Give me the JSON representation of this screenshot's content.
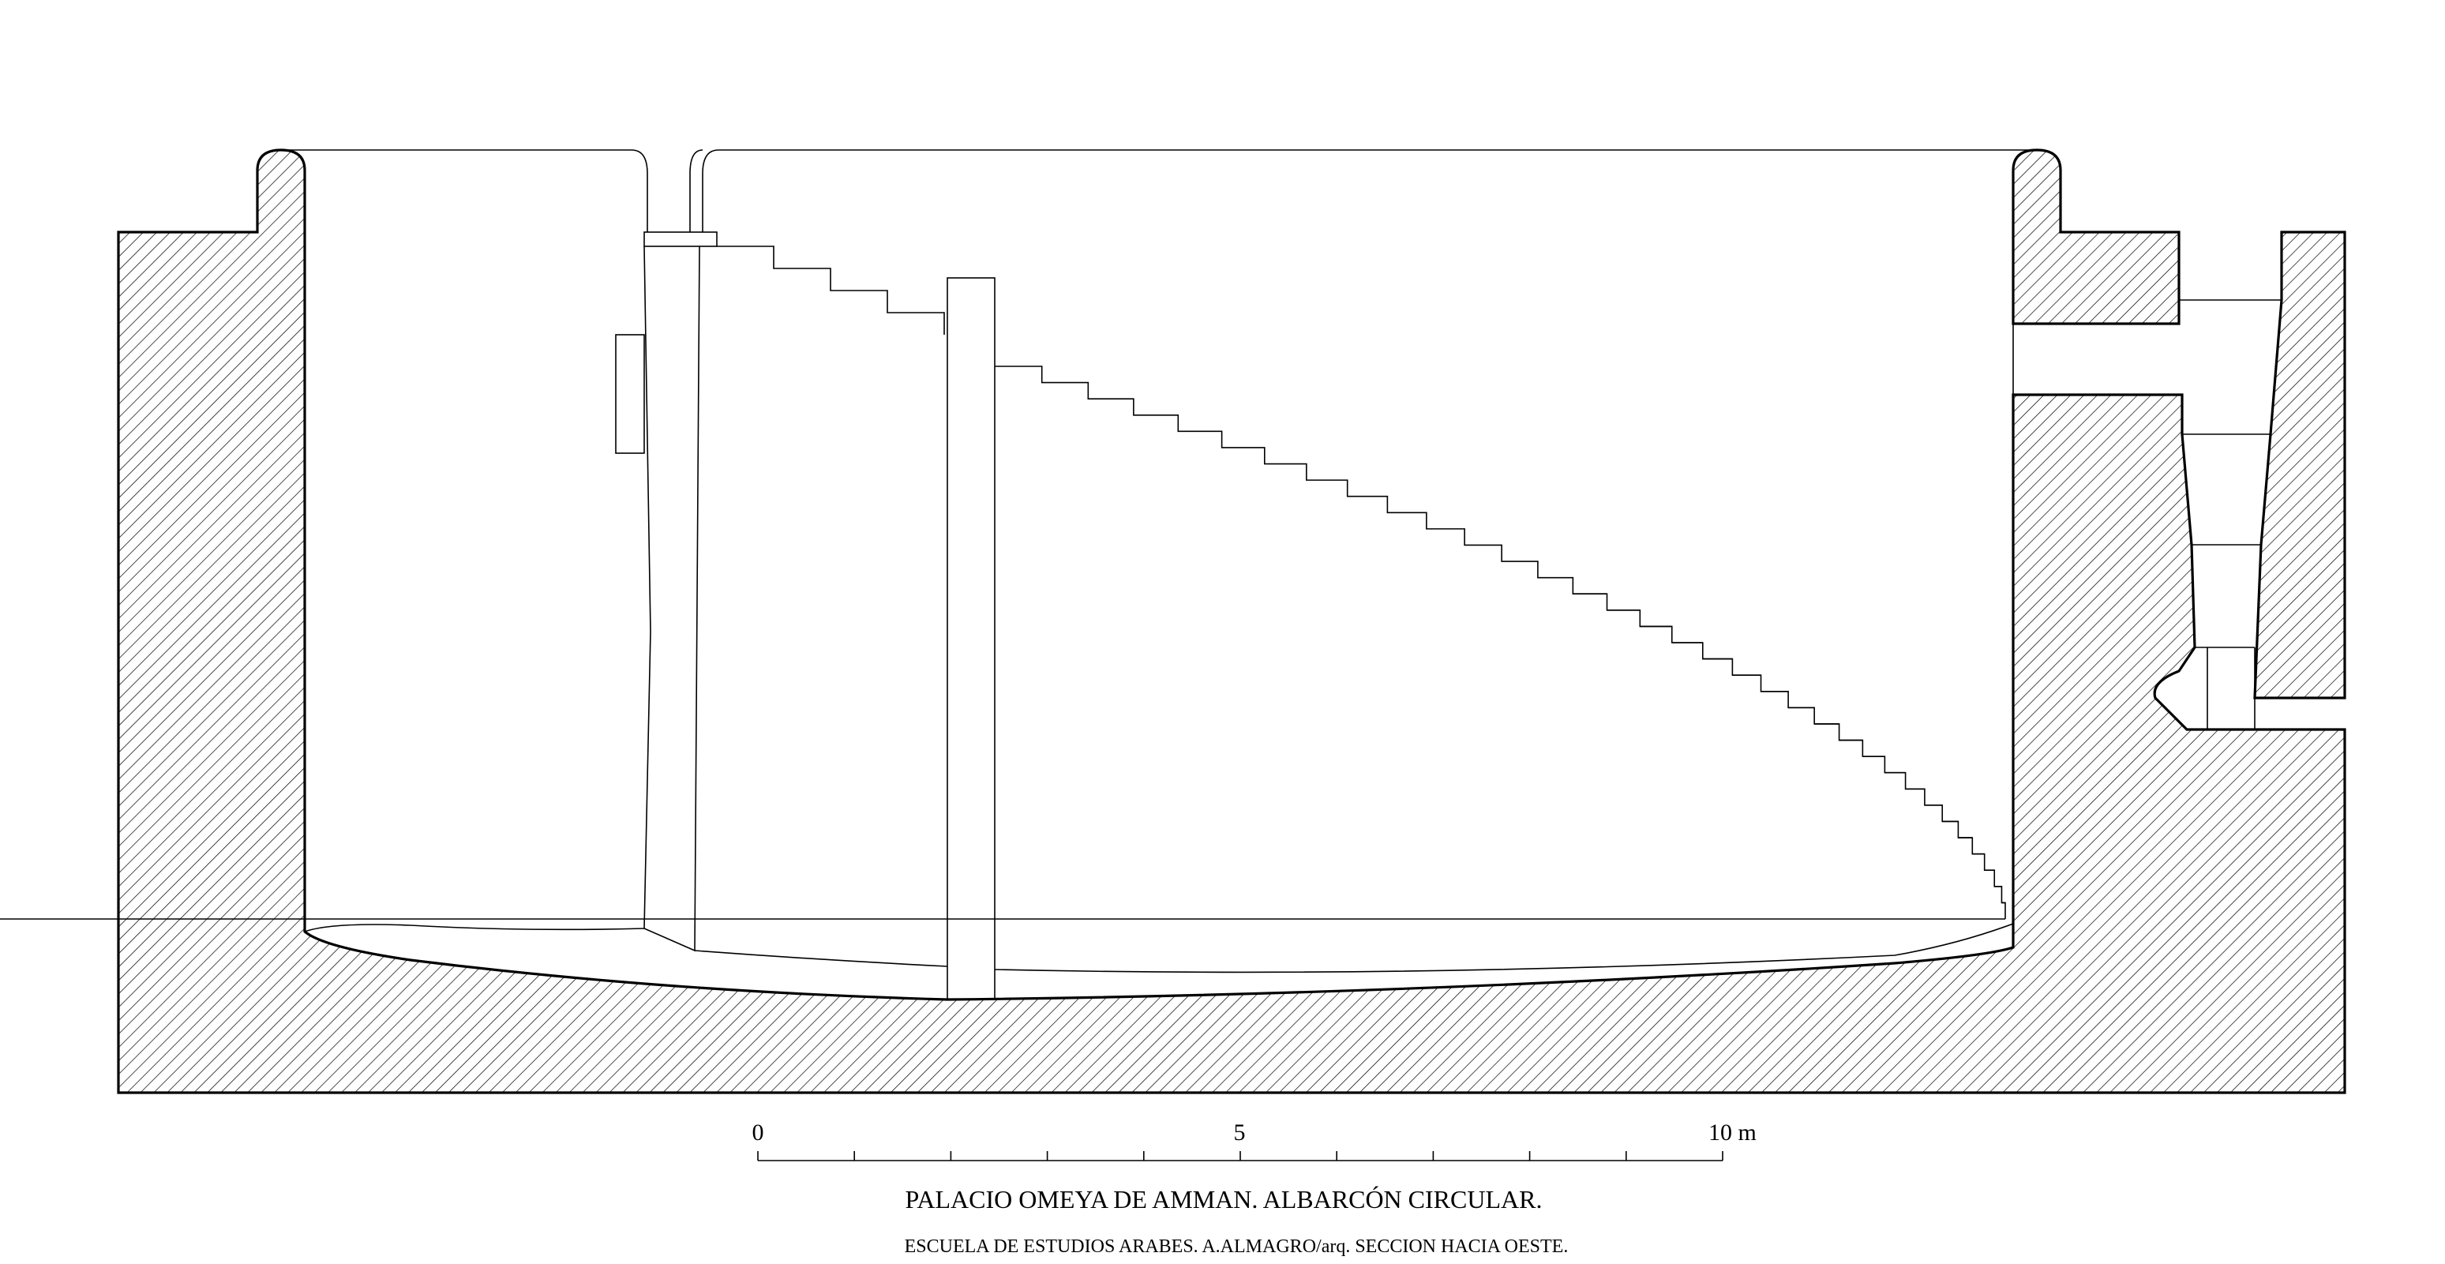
{
  "title": "PALACIO OMEYA DE AMMAN. ALBARCÓN CIRCULAR.",
  "subtitle": "ESCUELA DE ESTUDIOS ARABES. A.ALMAGRO/arq. SECCION HACIA OESTE.",
  "scale_bar": {
    "labels": [
      "0",
      "5",
      "10 m"
    ]
  }
}
